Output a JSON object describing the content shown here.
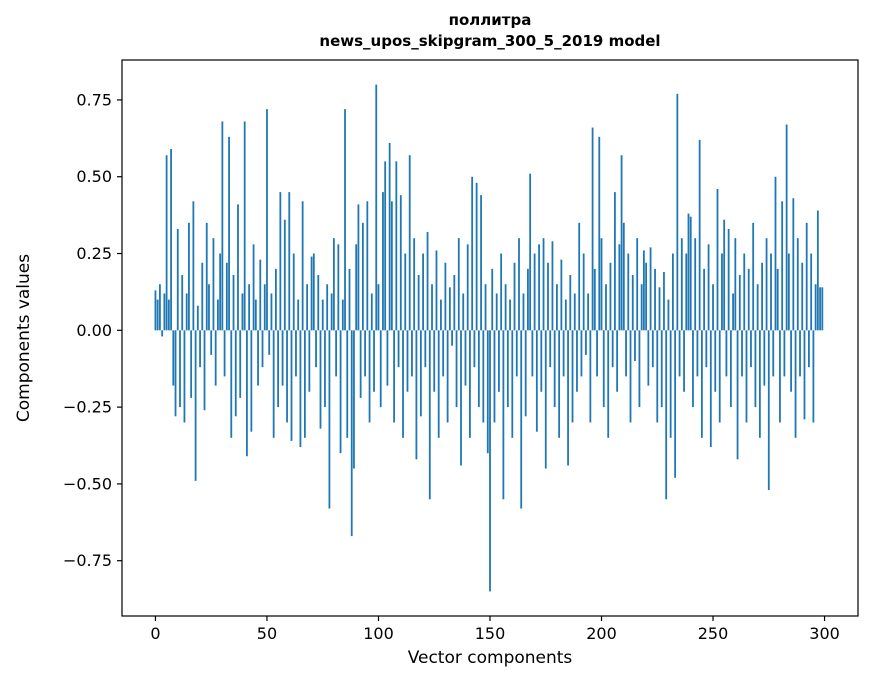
{
  "title": {
    "word": "поллитра",
    "model_line": "news_upos_skipgram_300_5_2019 model"
  },
  "axes": {
    "xlabel": "Vector components",
    "ylabel": "Components values"
  },
  "chart_data": {
    "type": "bar",
    "title": "поллитра",
    "subtitle": "news_upos_skipgram_300_5_2019 model",
    "xlabel": "Vector components",
    "ylabel": "Components values",
    "n_components": 300,
    "bar_color": "#1f77b4",
    "axis_color": "#000000",
    "grid": false,
    "legend": "none",
    "xlim": [
      -15,
      315
    ],
    "ylim": [
      -0.93,
      0.88
    ],
    "xtick_values": [
      0,
      50,
      100,
      150,
      200,
      250,
      300
    ],
    "xtick_labels": [
      "0",
      "50",
      "100",
      "150",
      "200",
      "250",
      "300"
    ],
    "ytick_values": [
      0.75,
      0.5,
      0.25,
      0.0,
      -0.25,
      -0.5,
      -0.75
    ],
    "ytick_labels": [
      "0.75",
      "0.50",
      "0.25",
      "0.00",
      "−0.25",
      "−0.50",
      "−0.75"
    ],
    "values": [
      0.13,
      0.1,
      0.15,
      -0.02,
      0.12,
      0.57,
      0.1,
      0.59,
      -0.18,
      -0.28,
      0.33,
      -0.25,
      0.18,
      -0.3,
      0.12,
      0.35,
      -0.22,
      0.42,
      -0.49,
      0.08,
      -0.12,
      0.22,
      -0.26,
      0.35,
      0.15,
      -0.08,
      0.3,
      -0.18,
      0.1,
      0.25,
      0.68,
      -0.15,
      0.22,
      0.63,
      -0.35,
      0.18,
      -0.28,
      0.41,
      -0.22,
      0.12,
      0.68,
      -0.41,
      0.15,
      -0.33,
      0.28,
      0.1,
      -0.18,
      0.23,
      -0.12,
      0.15,
      0.72,
      -0.08,
      0.12,
      -0.35,
      0.2,
      -0.25,
      0.45,
      -0.18,
      0.36,
      -0.3,
      0.45,
      -0.36,
      0.25,
      -0.15,
      0.1,
      -0.38,
      0.42,
      -0.35,
      0.15,
      -0.2,
      0.24,
      0.25,
      -0.12,
      0.18,
      -0.32,
      0.1,
      -0.25,
      0.15,
      -0.58,
      0.12,
      0.3,
      -0.15,
      0.28,
      -0.4,
      0.1,
      0.72,
      -0.35,
      0.2,
      -0.67,
      -0.45,
      0.28,
      0.41,
      -0.22,
      0.35,
      -0.15,
      0.42,
      -0.3,
      0.12,
      -0.2,
      0.8,
      0.15,
      -0.25,
      0.45,
      0.55,
      -0.18,
      0.61,
      0.42,
      -0.3,
      0.55,
      -0.12,
      0.44,
      -0.35,
      0.25,
      -0.2,
      0.57,
      -0.15,
      0.3,
      -0.42,
      0.18,
      -0.28,
      0.25,
      -0.12,
      0.32,
      -0.55,
      0.15,
      -0.2,
      0.26,
      -0.35,
      0.1,
      -0.15,
      0.22,
      -0.3,
      0.14,
      -0.05,
      0.18,
      -0.25,
      0.3,
      -0.44,
      0.12,
      -0.18,
      0.28,
      -0.35,
      0.5,
      -0.12,
      0.48,
      -0.25,
      0.44,
      -0.3,
      0.15,
      -0.4,
      -0.85,
      0.2,
      -0.3,
      0.12,
      -0.2,
      0.25,
      -0.55,
      0.15,
      -0.25,
      0.1,
      -0.35,
      0.22,
      -0.15,
      0.3,
      -0.58,
      0.12,
      -0.28,
      0.2,
      0.51,
      -0.15,
      0.25,
      -0.33,
      0.28,
      -0.2,
      0.3,
      -0.45,
      0.22,
      -0.12,
      0.29,
      -0.25,
      0.15,
      -0.35,
      0.23,
      -0.15,
      0.1,
      -0.44,
      0.18,
      -0.3,
      0.12,
      -0.2,
      0.35,
      -0.15,
      0.25,
      -0.08,
      0.12,
      -0.3,
      0.66,
      0.2,
      -0.15,
      0.63,
      0.3,
      -0.25,
      0.15,
      -0.35,
      0.22,
      -0.12,
      0.45,
      -0.2,
      0.28,
      0.57,
      0.35,
      -0.15,
      0.25,
      -0.3,
      0.18,
      -0.1,
      0.3,
      -0.25,
      0.15,
      0.26,
      0.22,
      -0.18,
      0.27,
      -0.12,
      0.2,
      -0.3,
      0.14,
      -0.25,
      0.19,
      -0.55,
      0.1,
      -0.35,
      0.25,
      -0.48,
      0.77,
      -0.15,
      0.3,
      -0.2,
      0.25,
      0.38,
      0.37,
      -0.25,
      0.3,
      -0.15,
      0.62,
      -0.35,
      0.2,
      -0.12,
      0.28,
      -0.38,
      0.15,
      -0.2,
      0.46,
      -0.3,
      0.25,
      0.36,
      -0.15,
      0.33,
      -0.25,
      0.12,
      0.3,
      -0.42,
      0.18,
      -0.15,
      0.25,
      -0.3,
      0.2,
      -0.12,
      0.35,
      -0.25,
      0.15,
      -0.35,
      0.22,
      -0.18,
      0.3,
      -0.52,
      0.25,
      -0.15,
      0.5,
      0.2,
      -0.3,
      0.42,
      -0.15,
      0.67,
      0.25,
      -0.2,
      0.43,
      -0.35,
      0.3,
      -0.15,
      0.22,
      -0.29,
      0.35,
      -0.12,
      0.25,
      -0.3,
      0.15,
      0.39,
      0.14,
      0.14
    ]
  }
}
